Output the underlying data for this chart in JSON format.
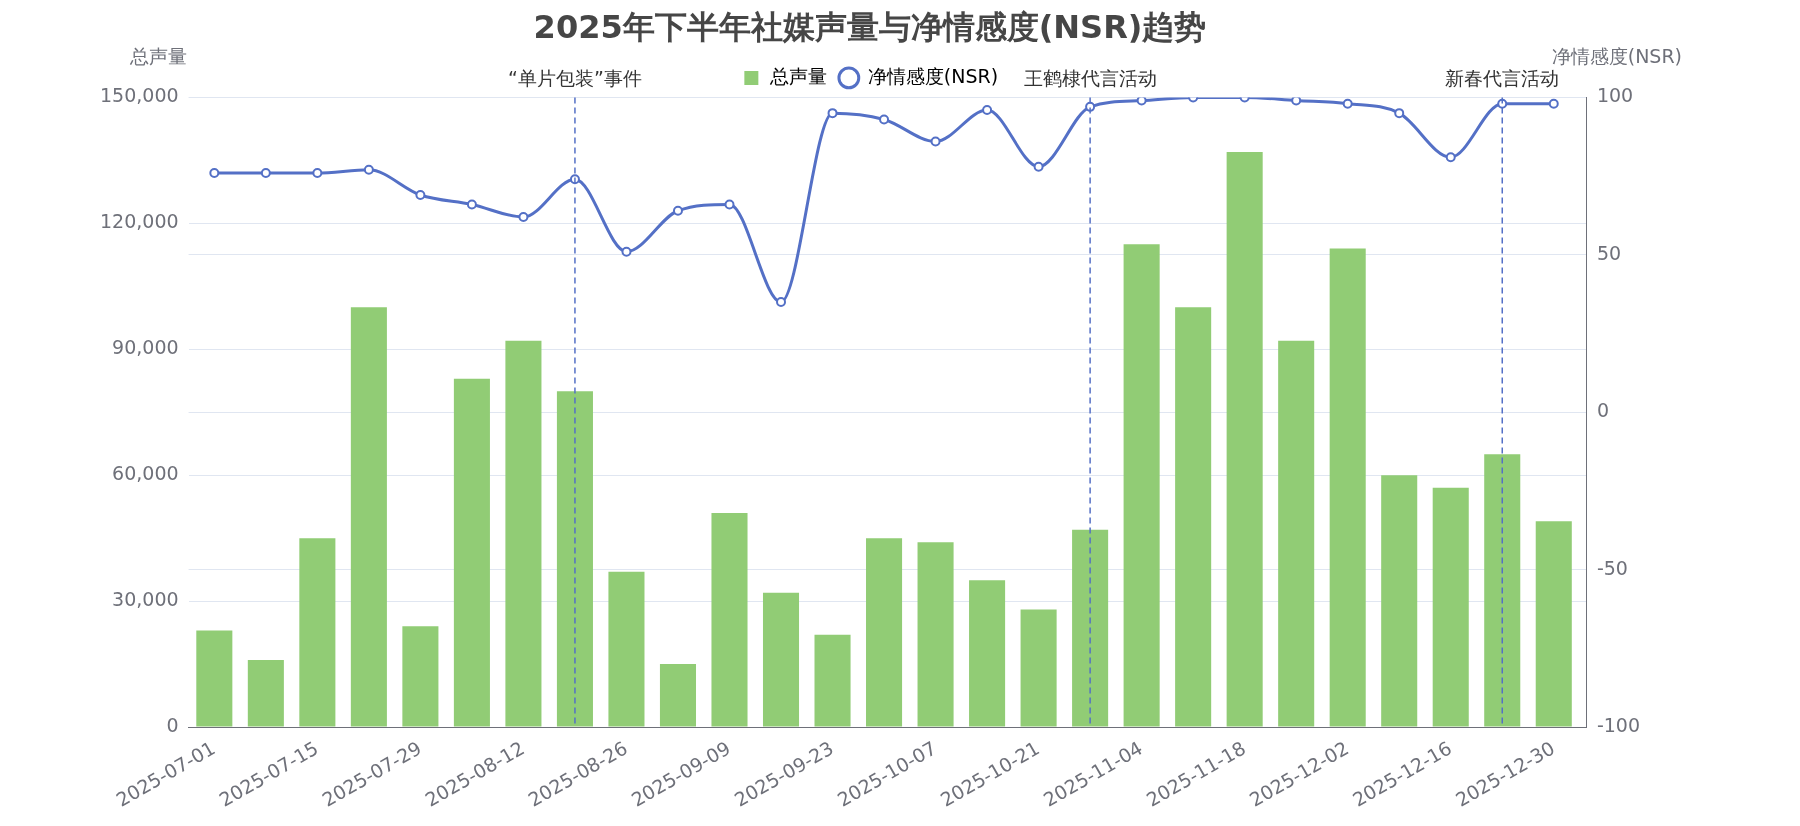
{
  "chart_data": {
    "type": "bar",
    "title": "2025年下半年社媒声量与净情感度(NSR)趋势",
    "ylabel": "总声量",
    "y2label": "净情感度(NSR)",
    "x": [
      "2025-07-01",
      "2025-07-08",
      "2025-07-15",
      "2025-07-22",
      "2025-07-29",
      "2025-08-05",
      "2025-08-12",
      "2025-08-19",
      "2025-08-26",
      "2025-09-02",
      "2025-09-09",
      "2025-09-16",
      "2025-09-23",
      "2025-09-30",
      "2025-10-07",
      "2025-10-14",
      "2025-10-21",
      "2025-10-28",
      "2025-11-04",
      "2025-11-11",
      "2025-11-18",
      "2025-11-25",
      "2025-12-02",
      "2025-12-09",
      "2025-12-16",
      "2025-12-23",
      "2025-12-30"
    ],
    "xlim": [
      "2025-06-27T12:00",
      "2026-01-03T12:00"
    ],
    "xticks": [
      "2025-07-01",
      "2025-07-15",
      "2025-07-29",
      "2025-08-12",
      "2025-08-26",
      "2025-09-09",
      "2025-09-23",
      "2025-10-07",
      "2025-10-21",
      "2025-11-04",
      "2025-11-18",
      "2025-12-02",
      "2025-12-16",
      "2025-12-30"
    ],
    "series": [
      {
        "name": "总声量",
        "color": "#91cc75",
        "values": [
          23000,
          16000,
          45000,
          100000,
          24000,
          83000,
          92000,
          80000,
          37000,
          15000,
          51000,
          32000,
          22000,
          45000,
          44000,
          35000,
          28000,
          47000,
          115000,
          100000,
          137000,
          92000,
          114000,
          60000,
          57000,
          65000,
          49000
        ]
      },
      {
        "name": "净情感度(NSR)",
        "type": "line",
        "axis": "y2",
        "color": "#5470c6",
        "values": [
          76,
          76,
          76,
          77,
          69,
          66,
          62,
          74,
          51,
          64,
          66,
          35,
          95,
          93,
          86,
          96,
          78,
          97,
          99,
          100,
          100,
          99,
          98,
          95,
          81,
          98,
          98
        ]
      }
    ],
    "ylim": [
      0,
      150000
    ],
    "yticks": [
      {
        "value": 0,
        "label": "0"
      },
      {
        "value": 30000,
        "label": "30,000"
      },
      {
        "value": 60000,
        "label": "60,000"
      },
      {
        "value": 90000,
        "label": "90,000"
      },
      {
        "value": 120000,
        "label": "120,000"
      },
      {
        "value": 150000,
        "label": "150,000"
      }
    ],
    "y2lim": [
      -100,
      100
    ],
    "y2ticks": [
      -100,
      -50,
      0,
      50,
      100
    ],
    "ref_lines": [
      {
        "axis": "x",
        "value": "2025-08-19",
        "label": "“单片包装”事件",
        "color": "#5470c6",
        "line_style": "dashed"
      },
      {
        "axis": "x",
        "value": "2025-10-28",
        "label": "王鹤棣代言活动",
        "color": "#5470c6",
        "line_style": "dashed"
      },
      {
        "axis": "x",
        "value": "2025-12-23",
        "label": "新春代言活动",
        "color": "#5470c6",
        "line_style": "dashed"
      }
    ],
    "grid": "y",
    "legend": "top",
    "marker": "circle",
    "line_style": "solid"
  }
}
